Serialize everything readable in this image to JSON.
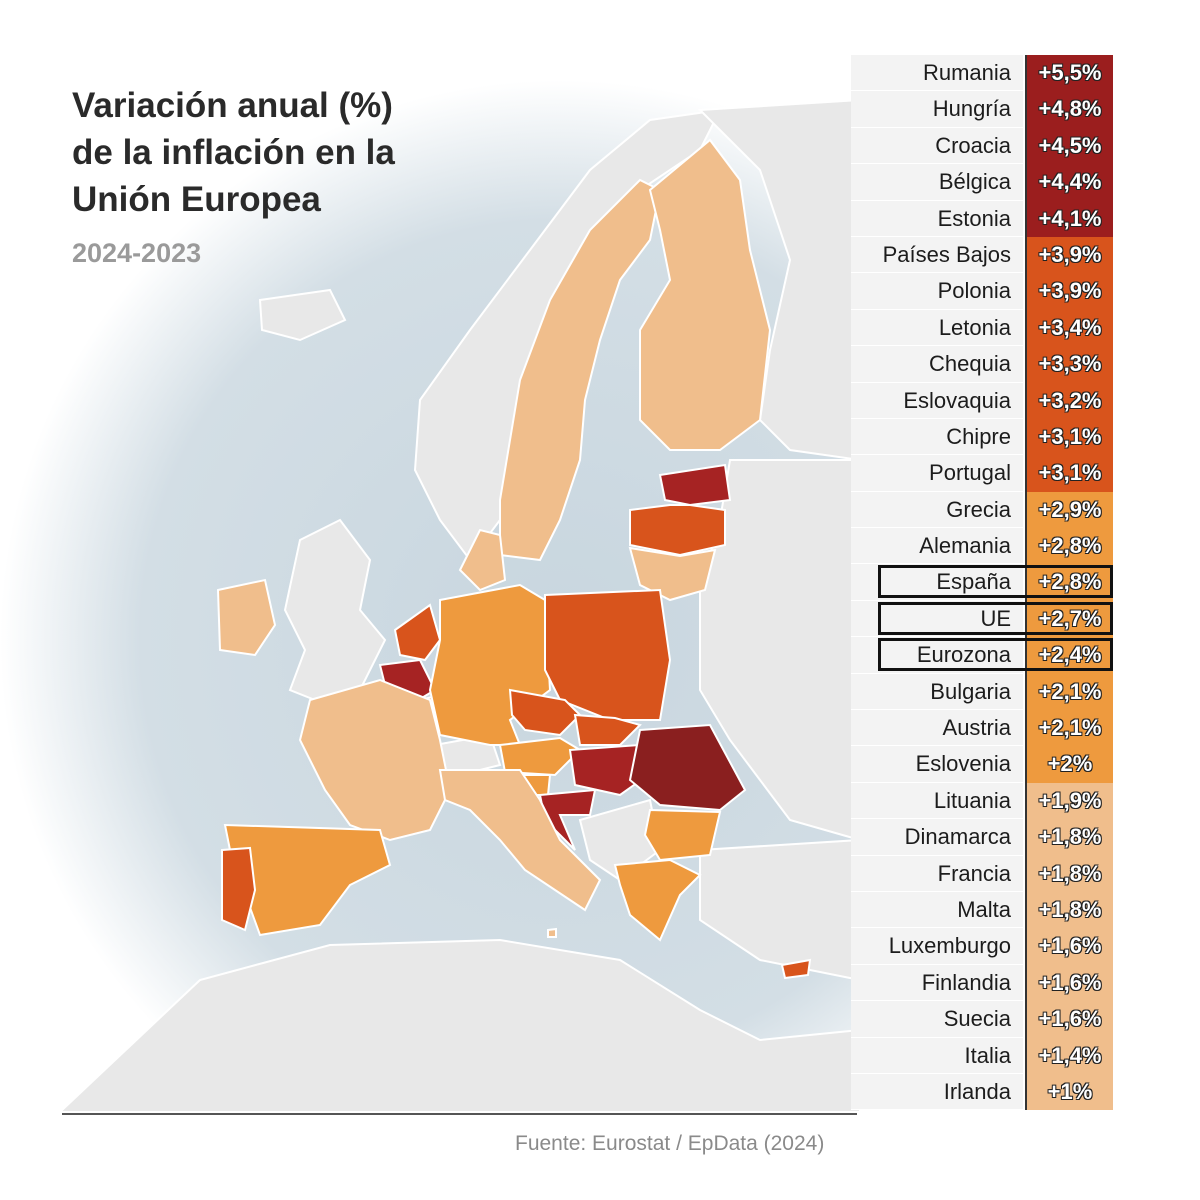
{
  "title_lines": [
    "Variación anual (%)",
    "de la inflación en la",
    "Unión Europea"
  ],
  "subtitle": "2024-2023",
  "source": "Fuente: Eurostat  / EpData (2024)",
  "colors": {
    "sea": "#c9d6de",
    "land": "#e8e8e8",
    "outline": "#ffffff",
    "scale_low": "#f0be8c",
    "scale_mid": "#ee9a3e",
    "scale_high": "#d8541c",
    "scale_top": "#9b1e1e"
  },
  "ranking": [
    {
      "country": "Rumania",
      "value": "+5,5%",
      "pct": 5.5,
      "highlight": false
    },
    {
      "country": "Hungría",
      "value": "+4,8%",
      "pct": 4.8,
      "highlight": false
    },
    {
      "country": "Croacia",
      "value": "+4,5%",
      "pct": 4.5,
      "highlight": false
    },
    {
      "country": "Bélgica",
      "value": "+4,4%",
      "pct": 4.4,
      "highlight": false
    },
    {
      "country": "Estonia",
      "value": "+4,1%",
      "pct": 4.1,
      "highlight": false
    },
    {
      "country": "Países Bajos",
      "value": "+3,9%",
      "pct": 3.9,
      "highlight": false
    },
    {
      "country": "Polonia",
      "value": "+3,9%",
      "pct": 3.9,
      "highlight": false
    },
    {
      "country": "Letonia",
      "value": "+3,4%",
      "pct": 3.4,
      "highlight": false
    },
    {
      "country": "Chequia",
      "value": "+3,3%",
      "pct": 3.3,
      "highlight": false
    },
    {
      "country": "Eslovaquia",
      "value": "+3,2%",
      "pct": 3.2,
      "highlight": false
    },
    {
      "country": "Chipre",
      "value": "+3,1%",
      "pct": 3.1,
      "highlight": false
    },
    {
      "country": "Portugal",
      "value": "+3,1%",
      "pct": 3.1,
      "highlight": false
    },
    {
      "country": "Grecia",
      "value": "+2,9%",
      "pct": 2.9,
      "highlight": false
    },
    {
      "country": "Alemania",
      "value": "+2,8%",
      "pct": 2.8,
      "highlight": false
    },
    {
      "country": "España",
      "value": "+2,8%",
      "pct": 2.8,
      "highlight": true
    },
    {
      "country": "UE",
      "value": "+2,7%",
      "pct": 2.7,
      "highlight": true
    },
    {
      "country": "Eurozona",
      "value": "+2,4%",
      "pct": 2.4,
      "highlight": true
    },
    {
      "country": "Bulgaria",
      "value": "+2,1%",
      "pct": 2.1,
      "highlight": false
    },
    {
      "country": "Austria",
      "value": "+2,1%",
      "pct": 2.1,
      "highlight": false
    },
    {
      "country": "Eslovenia",
      "value": "+2%",
      "pct": 2.0,
      "highlight": false
    },
    {
      "country": "Lituania",
      "value": "+1,9%",
      "pct": 1.9,
      "highlight": false
    },
    {
      "country": "Dinamarca",
      "value": "+1,8%",
      "pct": 1.8,
      "highlight": false
    },
    {
      "country": "Francia",
      "value": "+1,8%",
      "pct": 1.8,
      "highlight": false
    },
    {
      "country": "Malta",
      "value": "+1,8%",
      "pct": 1.8,
      "highlight": false
    },
    {
      "country": "Luxemburgo",
      "value": "+1,6%",
      "pct": 1.6,
      "highlight": false
    },
    {
      "country": "Finlandia",
      "value": "+1,6%",
      "pct": 1.6,
      "highlight": false
    },
    {
      "country": "Suecia",
      "value": "+1,6%",
      "pct": 1.6,
      "highlight": false
    },
    {
      "country": "Italia",
      "value": "+1,4%",
      "pct": 1.4,
      "highlight": false
    },
    {
      "country": "Irlanda",
      "value": "+1%",
      "pct": 1.0,
      "highlight": false
    }
  ]
}
